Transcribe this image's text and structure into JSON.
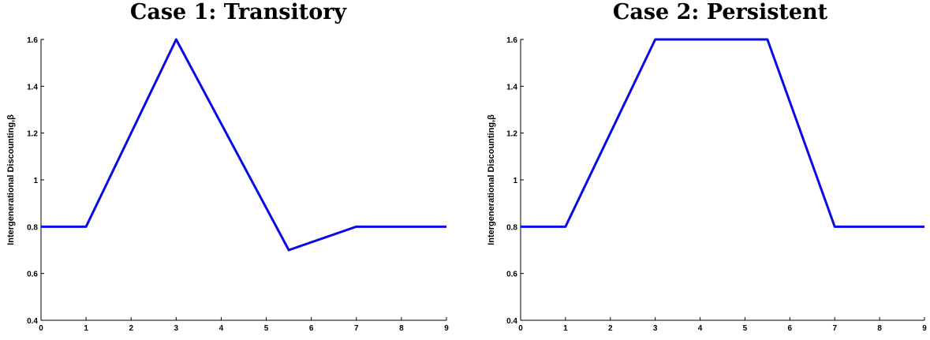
{
  "chart_data": [
    {
      "type": "line",
      "title": "Case 1: Transitory",
      "xlabel": "",
      "ylabel": "Intergenerational Discounting,β",
      "xlim": [
        0,
        9
      ],
      "ylim": [
        0.4,
        1.6
      ],
      "x_ticks": [
        "0",
        "1",
        "2",
        "3",
        "4",
        "5",
        "6",
        "7",
        "8",
        "9"
      ],
      "y_ticks": [
        "0.4",
        "0.6",
        "0.8",
        "1",
        "1.2",
        "1.4",
        "1.6"
      ],
      "series": [
        {
          "x": [
            0,
            1,
            3,
            5.5,
            7,
            9
          ],
          "y": [
            0.8,
            0.8,
            1.6,
            0.7,
            0.8,
            0.8
          ]
        }
      ],
      "colors": {
        "line": "#0a0ae6"
      }
    },
    {
      "type": "line",
      "title": "Case 2: Persistent",
      "xlabel": "",
      "ylabel": "Intergenerational Discounting,β",
      "xlim": [
        0,
        9
      ],
      "ylim": [
        0.4,
        1.6
      ],
      "x_ticks": [
        "0",
        "1",
        "2",
        "3",
        "4",
        "5",
        "6",
        "7",
        "8",
        "9"
      ],
      "y_ticks": [
        "0.4",
        "0.6",
        "0.8",
        "1",
        "1.2",
        "1.4",
        "1.6"
      ],
      "series": [
        {
          "x": [
            0,
            1,
            3,
            5.5,
            7,
            9
          ],
          "y": [
            0.8,
            0.8,
            1.6,
            1.6,
            0.8,
            0.8
          ]
        }
      ],
      "colors": {
        "line": "#0a0ae6"
      }
    }
  ]
}
